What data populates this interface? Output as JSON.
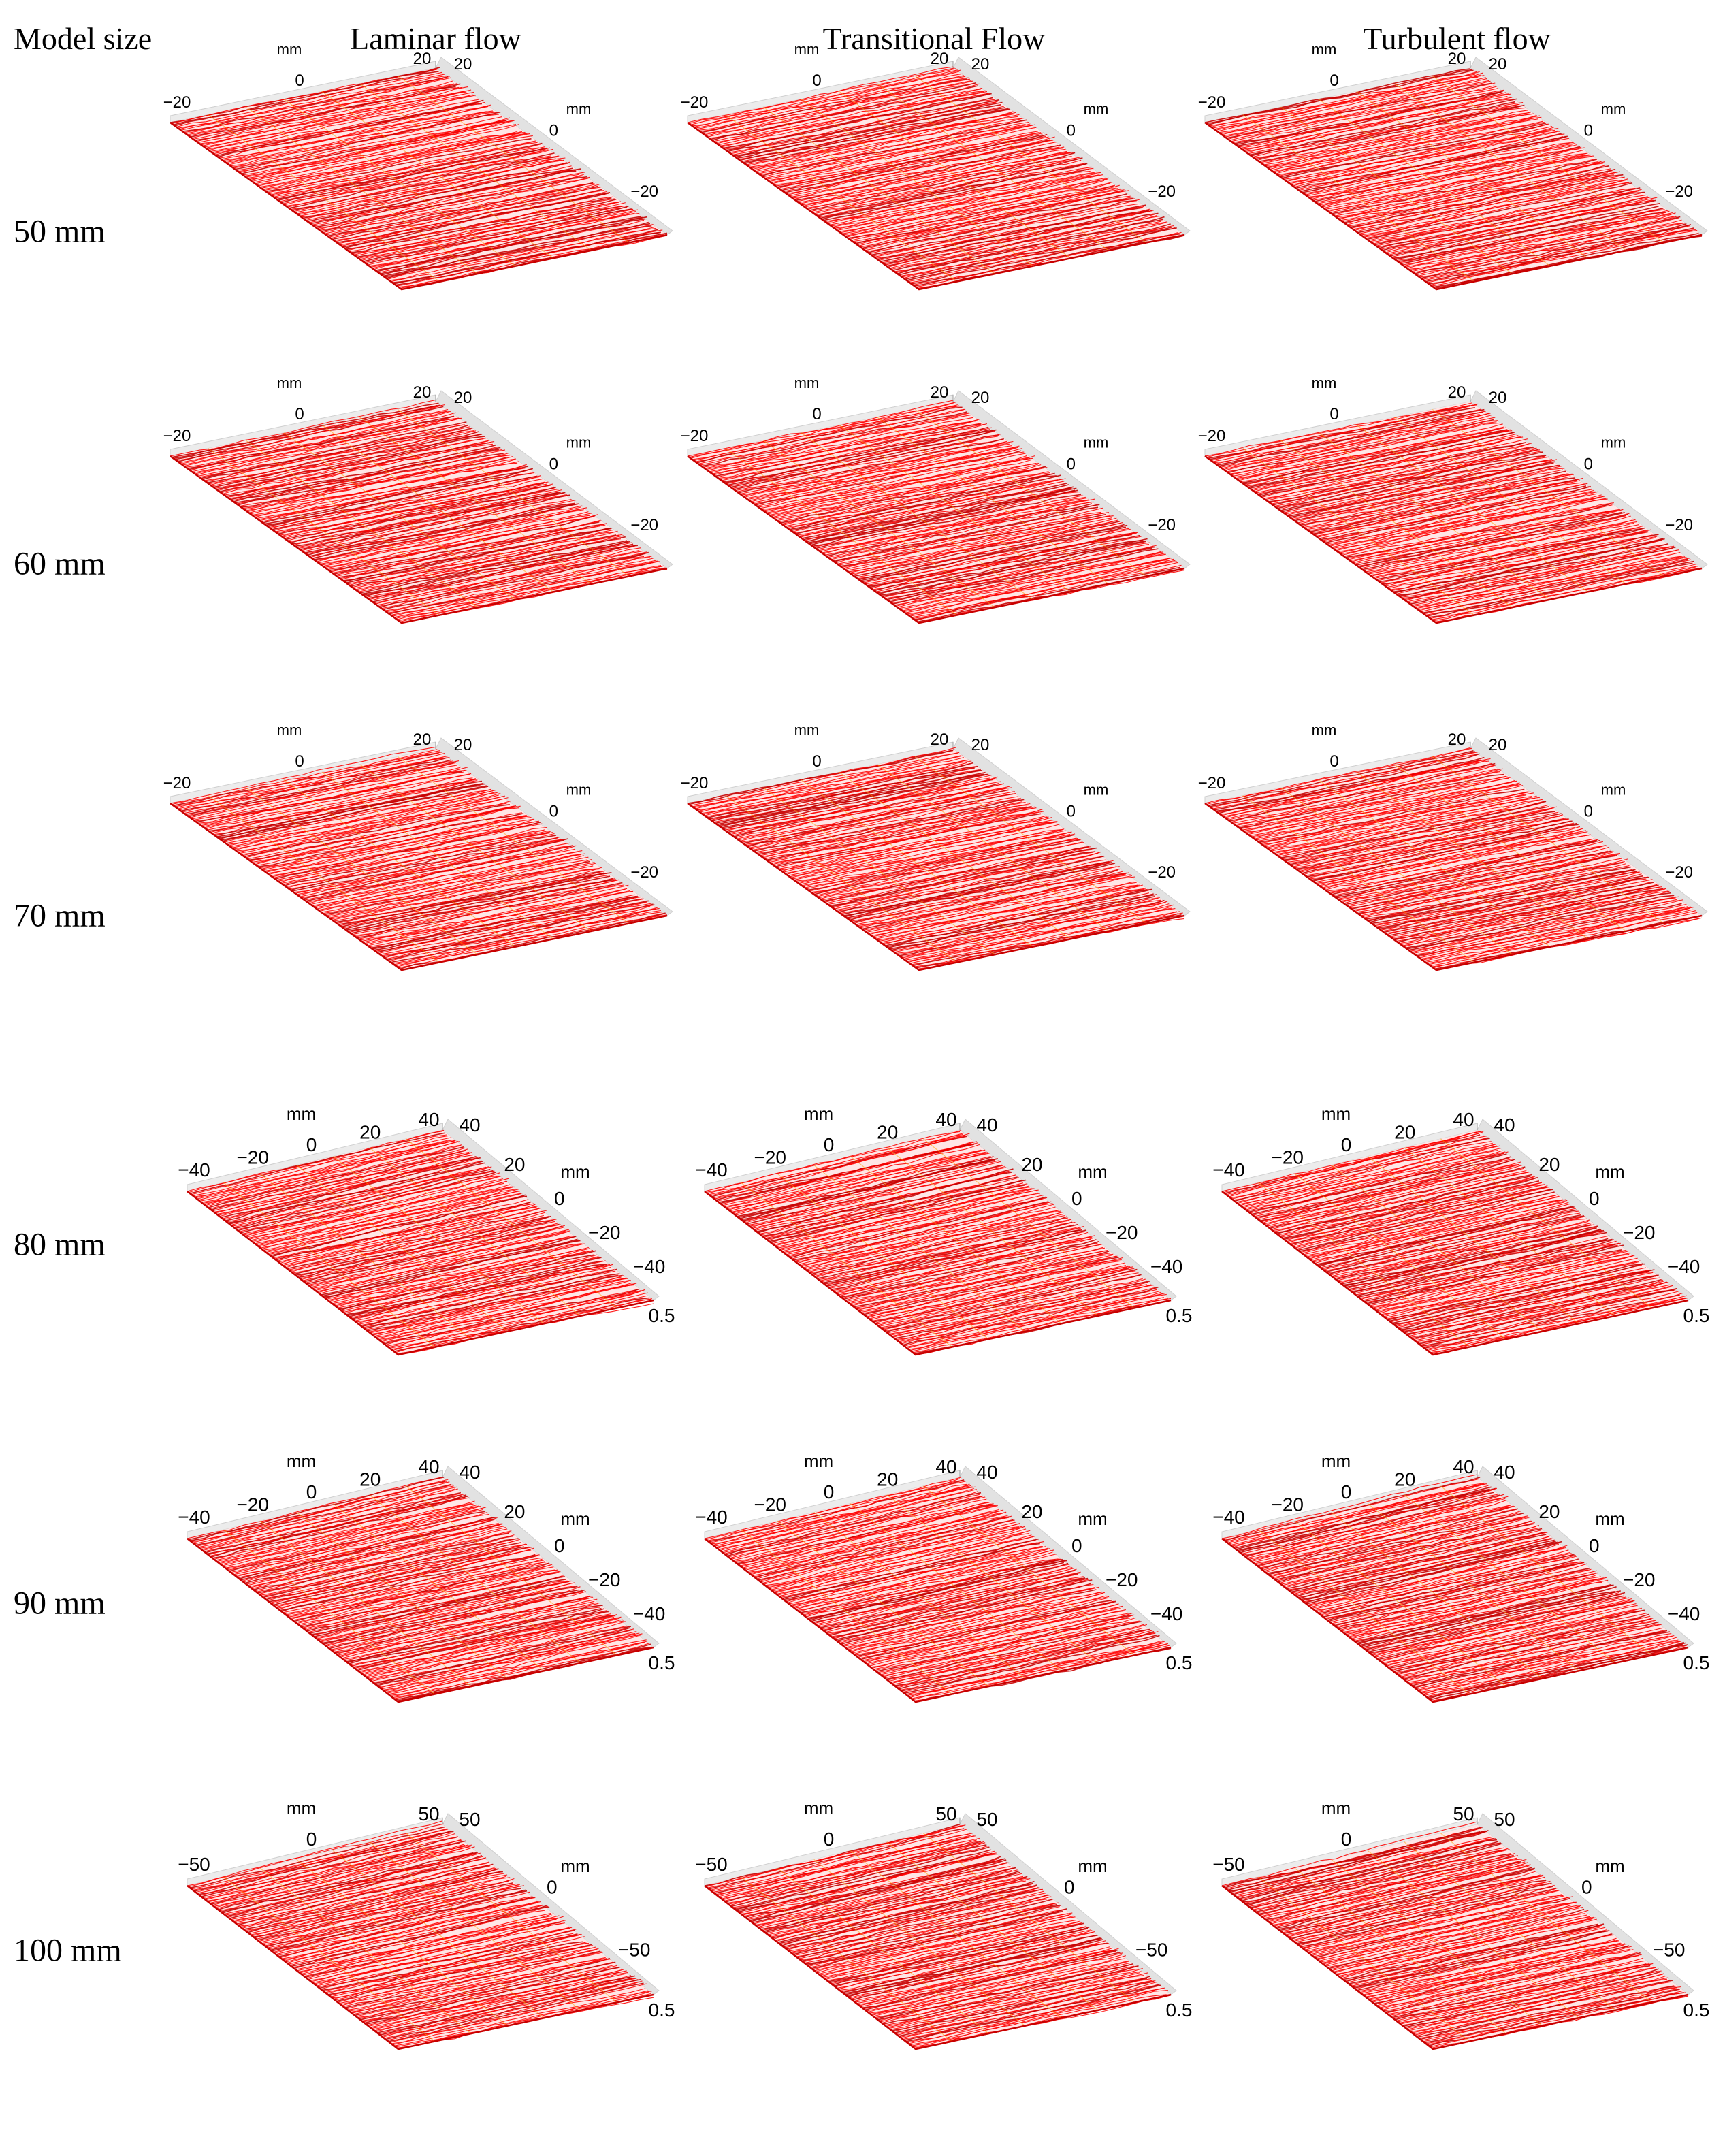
{
  "corner_label": "Model size",
  "columns": [
    "Laminar flow",
    "Transitional Flow",
    "Turbulent flow"
  ],
  "rows": [
    {
      "label": "50 mm",
      "ticks": {
        "mm_left": "mm",
        "left_axis": [
          "−20",
          "0",
          "20"
        ],
        "right_top": "20",
        "mm_right": "mm",
        "right_axis": [
          "0",
          "−20"
        ],
        "z_tick": ""
      }
    },
    {
      "label": "60 mm",
      "ticks": {
        "mm_left": "mm",
        "left_axis": [
          "−20",
          "0",
          "20"
        ],
        "right_top": "20",
        "mm_right": "mm",
        "right_axis": [
          "0",
          "−20"
        ],
        "z_tick": ""
      }
    },
    {
      "label": "70 mm",
      "ticks": {
        "mm_left": "mm",
        "left_axis": [
          "−20",
          "0",
          "20"
        ],
        "right_top": "20",
        "mm_right": "mm",
        "right_axis": [
          "0",
          "−20"
        ],
        "z_tick": ""
      }
    },
    {
      "label": "80 mm",
      "ticks": {
        "mm_left": "mm",
        "left_axis": [
          "−40",
          "−20",
          "0",
          "20",
          "40"
        ],
        "right_top": "40",
        "mm_right": "mm",
        "right_axis": [
          "20",
          "0",
          "−20",
          "−40"
        ],
        "z_tick": "0.5"
      }
    },
    {
      "label": "90 mm",
      "ticks": {
        "mm_left": "mm",
        "left_axis": [
          "−40",
          "−20",
          "0",
          "20",
          "40"
        ],
        "right_top": "40",
        "mm_right": "mm",
        "right_axis": [
          "20",
          "0",
          "−20",
          "−40"
        ],
        "z_tick": "0.5"
      }
    },
    {
      "label": "100 mm",
      "ticks": {
        "mm_left": "mm",
        "left_axis": [
          "−50",
          "0",
          "50"
        ],
        "right_top": "50",
        "mm_right": "mm",
        "right_axis": [
          "0",
          "−50"
        ],
        "z_tick": "0.5"
      }
    }
  ],
  "colors": {
    "surface": "#ff0000",
    "surface_dark": "#c80000",
    "grid": "#ffa000",
    "axis_box": "#cfcfcf",
    "background": "#ffffff"
  }
}
